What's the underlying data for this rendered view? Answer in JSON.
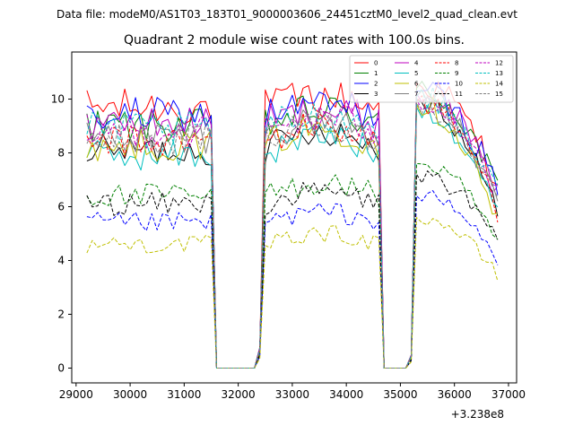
{
  "suptitle": "Data file: modeM0/AS1T03_183T01_9000003606_24451cztM0_level2_quad_clean.evt",
  "chart_data": {
    "type": "line",
    "title": "Quadrant 2 module wise count rates with 100.0s bins.",
    "xlabel": "",
    "ylabel": "",
    "x_offset_label": "+3.238e8",
    "xlim": [
      28920,
      37150
    ],
    "ylim": [
      -0.55,
      11.75
    ],
    "x_ticks": [
      29000,
      30000,
      31000,
      32000,
      33000,
      34000,
      35000,
      36000,
      37000
    ],
    "x_tick_labels": [
      "29000",
      "30000",
      "31000",
      "32000",
      "33000",
      "34000",
      "35000",
      "36000",
      "37000"
    ],
    "y_ticks": [
      0,
      2,
      4,
      6,
      8,
      10
    ],
    "y_tick_labels": [
      "0",
      "2",
      "4",
      "6",
      "8",
      "10"
    ],
    "legend_placement": "upper-right",
    "time_grid": {
      "start": 29200,
      "step": 100,
      "count": 77
    },
    "segments": [
      {
        "from": 29200,
        "to": 31500,
        "type": "flat"
      },
      {
        "from": 31500,
        "to": 31600,
        "type": "drop"
      },
      {
        "from": 31600,
        "to": 32300,
        "type": "zero"
      },
      {
        "from": 32300,
        "to": 32500,
        "type": "rise"
      },
      {
        "from": 32500,
        "to": 34600,
        "type": "flat"
      },
      {
        "from": 34600,
        "to": 34700,
        "type": "drop"
      },
      {
        "from": 34700,
        "to": 35100,
        "type": "zero"
      },
      {
        "from": 35100,
        "to": 35300,
        "type": "rise"
      },
      {
        "from": 35300,
        "to": 36800,
        "type": "decline"
      }
    ],
    "series": [
      {
        "name": "0",
        "color": "#ff0000",
        "dash": "solid",
        "base": 9.7,
        "peak": 10.6,
        "end": 6.9
      },
      {
        "name": "1",
        "color": "#008000",
        "dash": "solid",
        "base": 9.0,
        "peak": 10.4,
        "end": 6.6
      },
      {
        "name": "2",
        "color": "#0000ff",
        "dash": "solid",
        "base": 9.4,
        "peak": 10.3,
        "end": 6.7
      },
      {
        "name": "3",
        "color": "#000000",
        "dash": "solid",
        "base": 8.1,
        "peak": 10.0,
        "end": 5.6
      },
      {
        "name": "4",
        "color": "#bf00bf",
        "dash": "solid",
        "base": 9.1,
        "peak": 10.2,
        "end": 6.8
      },
      {
        "name": "5",
        "color": "#00bfbf",
        "dash": "solid",
        "base": 7.9,
        "peak": 9.7,
        "end": 5.6
      },
      {
        "name": "6",
        "color": "#bfbf00",
        "dash": "solid",
        "base": 8.3,
        "peak": 9.8,
        "end": 5.4
      },
      {
        "name": "7",
        "color": "#808080",
        "dash": "solid",
        "base": 8.6,
        "peak": 10.1,
        "end": 5.9
      },
      {
        "name": "8",
        "color": "#ff0000",
        "dash": "dashed",
        "base": 8.4,
        "peak": 9.9,
        "end": 5.9
      },
      {
        "name": "9",
        "color": "#008000",
        "dash": "dashed",
        "base": 6.4,
        "peak": 7.6,
        "end": 4.6
      },
      {
        "name": "10",
        "color": "#0000ff",
        "dash": "dashed",
        "base": 5.4,
        "peak": 6.4,
        "end": 4.0
      },
      {
        "name": "11",
        "color": "#000000",
        "dash": "dashed",
        "base": 6.1,
        "peak": 7.2,
        "end": 4.6
      },
      {
        "name": "12",
        "color": "#bf00bf",
        "dash": "dashed",
        "base": 8.8,
        "peak": 10.0,
        "end": 6.3
      },
      {
        "name": "13",
        "color": "#00bfbf",
        "dash": "dashed",
        "base": 8.9,
        "peak": 10.1,
        "end": 6.4
      },
      {
        "name": "14",
        "color": "#bfbf00",
        "dash": "dashed",
        "base": 4.6,
        "peak": 5.6,
        "end": 3.4
      },
      {
        "name": "15",
        "color": "#808080",
        "dash": "dashed",
        "base": 8.5,
        "peak": 9.9,
        "end": 6.1
      }
    ]
  }
}
